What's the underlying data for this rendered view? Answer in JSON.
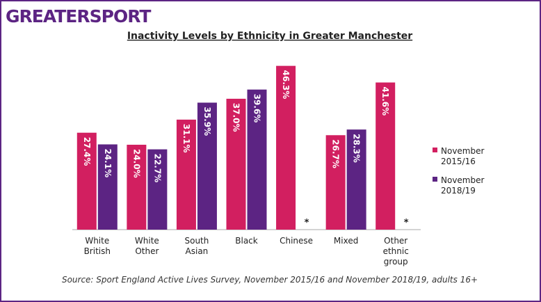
{
  "logo": "GREATERSPORT",
  "chart_data": {
    "type": "bar",
    "title": "Inactivity Levels by Ethnicity in Greater Manchester",
    "categories": [
      "White British",
      "White Other",
      "South Asian",
      "Black",
      "Chinese",
      "Mixed",
      "Other ethnic group"
    ],
    "series": [
      {
        "name": "November 2015/16",
        "color": "#d21f60",
        "values": [
          27.4,
          24.0,
          31.1,
          37.0,
          46.3,
          26.7,
          41.6
        ],
        "value_labels": [
          "27.4%",
          "24.0%",
          "31.1%",
          "37.0%",
          "46.3%",
          "26.7%",
          "41.6%"
        ]
      },
      {
        "name": "November 2018/19",
        "color": "#5c2483",
        "values": [
          24.1,
          22.7,
          35.9,
          39.6,
          null,
          28.3,
          null
        ],
        "value_labels": [
          "24.1%",
          "22.7%",
          "35.9%",
          "39.6%",
          "*",
          "28.3%",
          "*"
        ]
      }
    ],
    "ylim": [
      0,
      48
    ],
    "legend": "right",
    "source": "Source: Sport England Active Lives Survey, November 2015/16 and November 2018/19, adults 16+"
  }
}
